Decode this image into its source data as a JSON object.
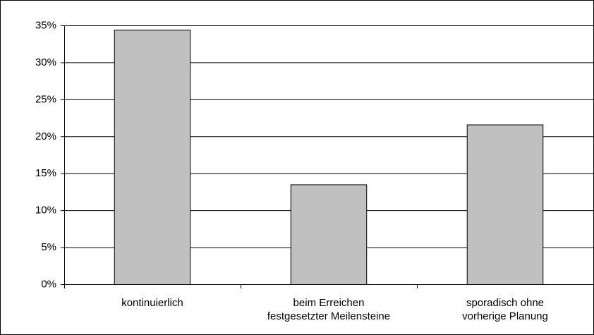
{
  "chart_data": {
    "type": "bar",
    "categories": [
      "kontinuierlich",
      "beim Erreichen\nfestgesetzter Meilensteine",
      "sporadisch ohne\nvorherige Planung"
    ],
    "values": [
      34.4,
      13.5,
      21.6
    ],
    "color": "#c0c0c0",
    "ylim": [
      0,
      35
    ],
    "yticks": [
      {
        "value": 0,
        "label": "0%"
      },
      {
        "value": 5,
        "label": "5%"
      },
      {
        "value": 10,
        "label": "10%"
      },
      {
        "value": 15,
        "label": "15%"
      },
      {
        "value": 20,
        "label": "20%"
      },
      {
        "value": 25,
        "label": "25%"
      },
      {
        "value": 30,
        "label": "30%"
      },
      {
        "value": 35,
        "label": "35%"
      }
    ],
    "grid": true
  }
}
